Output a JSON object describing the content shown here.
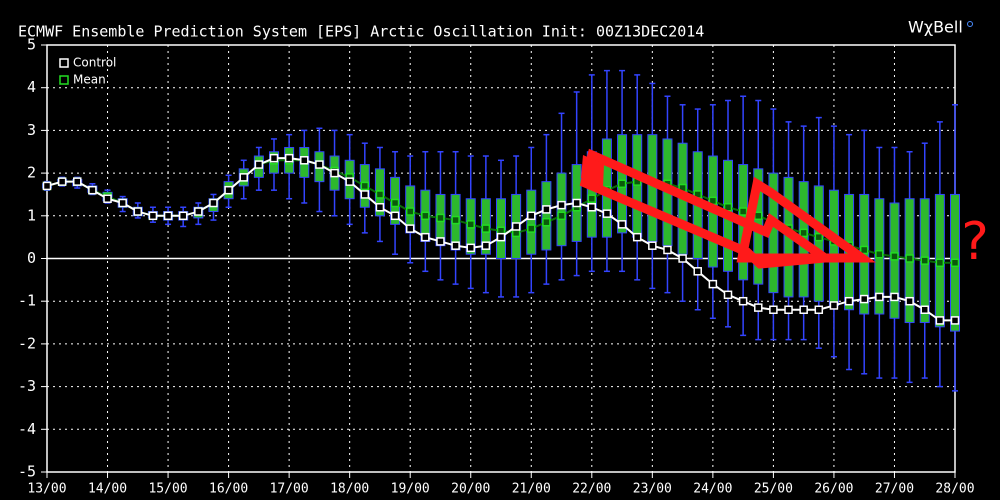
{
  "chart_data": {
    "type": "ensemble-box",
    "title": "ECMWF Ensemble Prediction System [EPS] Arctic Oscillation   Init: 00Z13DEC2014",
    "logo": "WχBell",
    "annotation": "?",
    "x": [
      0,
      6,
      12,
      18,
      24,
      30,
      36,
      42,
      48,
      54,
      60,
      66,
      72,
      78,
      84,
      90,
      96,
      102,
      108,
      114,
      120,
      126,
      132,
      138,
      144,
      150,
      156,
      162,
      168,
      174,
      180,
      186,
      192,
      198,
      204,
      210,
      216,
      222,
      228,
      234,
      240,
      246,
      252,
      258,
      264,
      270,
      276,
      282,
      288,
      294,
      300,
      306,
      312,
      318,
      324,
      330,
      336,
      342,
      348,
      354,
      360
    ],
    "xlim": [
      0,
      360
    ],
    "xticks": [
      {
        "value": 0,
        "label": "13/00"
      },
      {
        "value": 24,
        "label": "14/00"
      },
      {
        "value": 48,
        "label": "15/00"
      },
      {
        "value": 72,
        "label": "16/00"
      },
      {
        "value": 96,
        "label": "17/00"
      },
      {
        "value": 120,
        "label": "18/00"
      },
      {
        "value": 144,
        "label": "19/00"
      },
      {
        "value": 168,
        "label": "20/00"
      },
      {
        "value": 192,
        "label": "21/00"
      },
      {
        "value": 216,
        "label": "22/00"
      },
      {
        "value": 240,
        "label": "23/00"
      },
      {
        "value": 264,
        "label": "24/00"
      },
      {
        "value": 288,
        "label": "25/00"
      },
      {
        "value": 312,
        "label": "26/00"
      },
      {
        "value": 336,
        "label": "27/00"
      },
      {
        "value": 360,
        "label": "28/00"
      }
    ],
    "ylim": [
      -5,
      5
    ],
    "yticks": [
      -5,
      -4,
      -3,
      -2,
      -1,
      0,
      1,
      2,
      3,
      4,
      5
    ],
    "grid": true,
    "box_color": "#2db82d",
    "whisker_color": "#3344ff",
    "series": [
      {
        "name": "Control",
        "color": "#ffffff",
        "values": [
          1.7,
          1.8,
          1.8,
          1.6,
          1.4,
          1.3,
          1.1,
          1.0,
          1.0,
          1.0,
          1.1,
          1.3,
          1.6,
          1.9,
          2.2,
          2.35,
          2.35,
          2.3,
          2.2,
          2.0,
          1.8,
          1.5,
          1.2,
          1.0,
          0.7,
          0.5,
          0.4,
          0.3,
          0.25,
          0.3,
          0.5,
          0.75,
          1.0,
          1.15,
          1.25,
          1.3,
          1.2,
          1.05,
          0.8,
          0.5,
          0.3,
          0.2,
          0,
          -0.3,
          -0.6,
          -0.85,
          -1.0,
          -1.15,
          -1.2,
          -1.2,
          -1.2,
          -1.2,
          -1.1,
          -1.0,
          -0.95,
          -0.9,
          -0.9,
          -1.0,
          -1.2,
          -1.45,
          -1.45
        ]
      },
      {
        "name": "Mean",
        "color": "#22dd22",
        "values": [
          1.7,
          1.8,
          1.8,
          1.6,
          1.45,
          1.3,
          1.1,
          1.0,
          1.0,
          1.0,
          1.1,
          1.3,
          1.6,
          1.9,
          2.2,
          2.3,
          2.3,
          2.3,
          2.2,
          2.05,
          1.9,
          1.7,
          1.5,
          1.3,
          1.1,
          1.0,
          0.95,
          0.9,
          0.8,
          0.7,
          0.65,
          0.6,
          0.7,
          0.85,
          1.0,
          1.2,
          1.4,
          1.6,
          1.75,
          1.8,
          1.8,
          1.75,
          1.65,
          1.5,
          1.35,
          1.2,
          1.1,
          1.0,
          0.85,
          0.7,
          0.6,
          0.5,
          0.4,
          0.3,
          0.2,
          0.1,
          0.05,
          0.0,
          -0.05,
          -0.1,
          -0.1
        ]
      }
    ],
    "whisker_low": [
      1.6,
      1.7,
      1.65,
      1.5,
      1.3,
      1.1,
      0.95,
      0.85,
      0.8,
      0.75,
      0.8,
      0.9,
      1.2,
      1.4,
      1.6,
      1.6,
      1.4,
      1.3,
      1.1,
      1.0,
      0.8,
      0.6,
      0.4,
      0.1,
      -0.1,
      -0.3,
      -0.5,
      -0.6,
      -0.7,
      -0.8,
      -0.9,
      -0.9,
      -0.8,
      -0.6,
      -0.5,
      -0.4,
      -0.3,
      -0.3,
      -0.3,
      -0.5,
      -0.7,
      -0.8,
      -1.0,
      -1.2,
      -1.4,
      -1.6,
      -1.8,
      -1.9,
      -1.9,
      -1.9,
      -1.9,
      -2.1,
      -2.3,
      -2.6,
      -2.7,
      -2.8,
      -2.8,
      -2.9,
      -2.8,
      -3.0,
      -3.1
    ],
    "box_low": [
      1.65,
      1.75,
      1.7,
      1.55,
      1.35,
      1.2,
      1.0,
      0.95,
      0.9,
      0.9,
      0.95,
      1.1,
      1.4,
      1.7,
      1.9,
      2.0,
      2.0,
      1.9,
      1.8,
      1.6,
      1.4,
      1.2,
      1.0,
      0.8,
      0.6,
      0.4,
      0.3,
      0.2,
      0.1,
      0.1,
      0.0,
      0.0,
      0.1,
      0.2,
      0.3,
      0.4,
      0.5,
      0.5,
      0.6,
      0.5,
      0.4,
      0.3,
      0.1,
      0.0,
      -0.2,
      -0.3,
      -0.5,
      -0.6,
      -0.8,
      -0.9,
      -0.9,
      -1.0,
      -1.1,
      -1.2,
      -1.3,
      -1.3,
      -1.4,
      -1.5,
      -1.5,
      -1.6,
      -1.7
    ],
    "box_high": [
      1.75,
      1.85,
      1.85,
      1.7,
      1.55,
      1.4,
      1.2,
      1.1,
      1.1,
      1.1,
      1.2,
      1.4,
      1.8,
      2.1,
      2.4,
      2.5,
      2.6,
      2.6,
      2.5,
      2.4,
      2.3,
      2.2,
      2.1,
      1.9,
      1.7,
      1.6,
      1.5,
      1.5,
      1.4,
      1.4,
      1.4,
      1.5,
      1.6,
      1.8,
      2.0,
      2.2,
      2.5,
      2.8,
      2.9,
      2.9,
      2.9,
      2.8,
      2.7,
      2.5,
      2.4,
      2.3,
      2.2,
      2.1,
      2.0,
      1.9,
      1.8,
      1.7,
      1.6,
      1.5,
      1.5,
      1.4,
      1.3,
      1.4,
      1.4,
      1.5,
      1.5
    ],
    "whisker_high": [
      1.8,
      1.9,
      1.9,
      1.75,
      1.6,
      1.45,
      1.3,
      1.2,
      1.2,
      1.2,
      1.3,
      1.5,
      1.95,
      2.3,
      2.6,
      2.8,
      2.9,
      3.0,
      3.05,
      3.0,
      2.9,
      2.7,
      2.6,
      2.5,
      2.4,
      2.5,
      2.5,
      2.5,
      2.4,
      2.4,
      2.3,
      2.4,
      2.6,
      2.9,
      3.4,
      3.9,
      4.3,
      4.4,
      4.4,
      4.3,
      4.1,
      3.8,
      3.6,
      3.5,
      3.6,
      3.7,
      3.8,
      3.7,
      3.5,
      3.2,
      3.1,
      3.3,
      3.1,
      2.9,
      3.0,
      2.6,
      2.6,
      2.5,
      2.7,
      3.2,
      3.6
    ]
  }
}
